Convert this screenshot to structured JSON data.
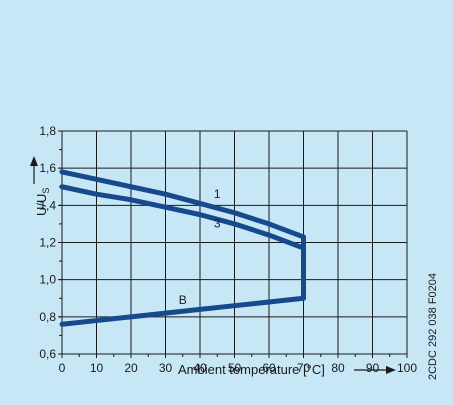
{
  "chart_data": {
    "type": "line",
    "xlabel": "Ambient temperature [°C]",
    "ylabel_main": "U/U",
    "ylabel_sub": "S",
    "xlim": [
      0,
      100
    ],
    "ylim": [
      0.6,
      1.8
    ],
    "x_ticks": [
      0,
      10,
      20,
      30,
      40,
      50,
      60,
      70,
      80,
      90,
      100
    ],
    "y_ticks": [
      0.6,
      0.8,
      1.0,
      1.2,
      1.4,
      1.6,
      1.8
    ],
    "x_tick_labels": [
      "0",
      "10",
      "20",
      "30",
      "40",
      "50",
      "60",
      "70",
      "80",
      "90",
      "100"
    ],
    "y_tick_labels": [
      "0,6",
      "0,8",
      "1,0",
      "1,2",
      "1,4",
      "1,6",
      "1,8"
    ],
    "grid": true,
    "series": [
      {
        "name": "1",
        "x": [
          0,
          10,
          20,
          30,
          40,
          50,
          60,
          70
        ],
        "y": [
          1.58,
          1.54,
          1.5,
          1.46,
          1.41,
          1.36,
          1.3,
          1.23
        ]
      },
      {
        "name": "3",
        "x": [
          0,
          10,
          20,
          30,
          40,
          50,
          60,
          70
        ],
        "y": [
          1.5,
          1.46,
          1.43,
          1.39,
          1.35,
          1.3,
          1.24,
          1.17
        ]
      },
      {
        "name": "B",
        "x": [
          0,
          10,
          20,
          30,
          40,
          50,
          60,
          70
        ],
        "y": [
          0.76,
          0.78,
          0.8,
          0.82,
          0.84,
          0.86,
          0.88,
          0.9
        ]
      }
    ],
    "drop_line": {
      "x": 70,
      "y_top": 1.23,
      "y_bottom": 0.9
    }
  },
  "reference_code": "2CDC 292 038 F0204",
  "colors": {
    "background": "#c7e7f7",
    "curve": "#174a8c",
    "grid": "#1a1a1a"
  }
}
